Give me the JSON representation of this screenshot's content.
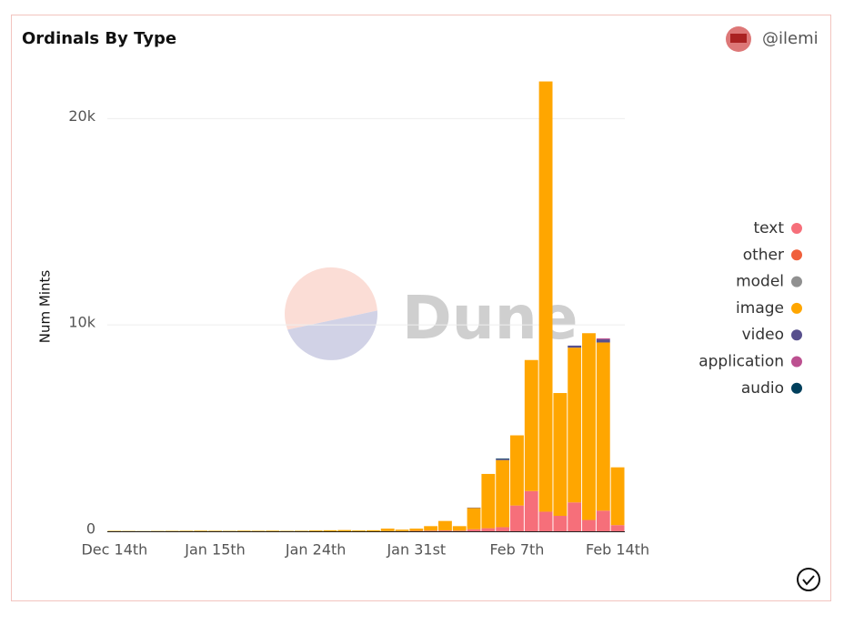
{
  "chart_data": {
    "type": "stacked_bar",
    "title": "Ordinals By Type",
    "user": "@ilemi",
    "watermark": "Dune",
    "ylabel": "Num Mints",
    "categories": [
      "Dec 14th",
      null,
      null,
      null,
      null,
      null,
      null,
      "Jan 15th",
      null,
      null,
      null,
      null,
      null,
      null,
      "Jan 24th",
      null,
      null,
      null,
      null,
      null,
      null,
      "Jan 31st",
      null,
      null,
      null,
      null,
      null,
      null,
      "Feb 7th",
      null,
      null,
      null,
      null,
      null,
      null,
      "Feb 14th"
    ],
    "series": [
      {
        "name": "text",
        "color": "#f66f7a",
        "values": [
          0,
          0,
          0,
          0,
          0,
          0,
          0,
          0,
          0,
          0,
          0,
          0,
          0,
          0,
          0,
          0,
          0,
          0,
          0,
          10,
          10,
          20,
          30,
          40,
          30,
          100,
          150,
          200,
          1250,
          1950,
          950,
          750,
          1400,
          550,
          1000,
          300
        ]
      },
      {
        "name": "other",
        "color": "#f0603c",
        "values": [
          0,
          0,
          0,
          0,
          0,
          0,
          0,
          0,
          0,
          0,
          0,
          0,
          0,
          0,
          0,
          0,
          0,
          0,
          0,
          0,
          0,
          0,
          0,
          0,
          0,
          0,
          0,
          0,
          0,
          0,
          0,
          0,
          0,
          0,
          0,
          0
        ]
      },
      {
        "name": "model",
        "color": "#909090",
        "values": [
          0,
          0,
          0,
          0,
          0,
          0,
          0,
          0,
          0,
          0,
          0,
          0,
          0,
          0,
          0,
          0,
          0,
          0,
          0,
          0,
          0,
          0,
          0,
          0,
          0,
          0,
          0,
          0,
          0,
          0,
          0,
          0,
          0,
          0,
          0,
          0
        ]
      },
      {
        "name": "image",
        "color": "#ffa600",
        "values": [
          20,
          15,
          10,
          15,
          20,
          25,
          30,
          25,
          20,
          30,
          25,
          30,
          20,
          25,
          40,
          50,
          60,
          40,
          50,
          120,
          70,
          110,
          220,
          460,
          220,
          1030,
          2630,
          3250,
          3400,
          6350,
          20850,
          5950,
          7500,
          9050,
          8150,
          2800
        ]
      },
      {
        "name": "video",
        "color": "#58508d",
        "values": [
          0,
          0,
          0,
          0,
          0,
          0,
          0,
          0,
          0,
          0,
          0,
          0,
          0,
          0,
          0,
          0,
          0,
          0,
          0,
          0,
          0,
          0,
          0,
          0,
          0,
          20,
          0,
          50,
          0,
          0,
          0,
          0,
          100,
          0,
          150,
          0
        ]
      },
      {
        "name": "application",
        "color": "#bc5090",
        "values": [
          0,
          0,
          0,
          0,
          0,
          0,
          0,
          0,
          0,
          0,
          0,
          0,
          0,
          0,
          0,
          0,
          0,
          0,
          0,
          0,
          0,
          0,
          0,
          0,
          0,
          0,
          0,
          0,
          0,
          0,
          0,
          0,
          0,
          0,
          50,
          0
        ]
      },
      {
        "name": "audio",
        "color": "#003f5c",
        "values": [
          0,
          0,
          0,
          0,
          0,
          0,
          0,
          0,
          0,
          0,
          0,
          0,
          0,
          0,
          0,
          0,
          0,
          0,
          0,
          0,
          0,
          0,
          0,
          0,
          0,
          0,
          0,
          30,
          0,
          0,
          0,
          0,
          0,
          0,
          0,
          0
        ]
      }
    ],
    "ylim": [
      0,
      22000
    ],
    "yticks": [
      0,
      {
        "value": 10000,
        "label": "10k"
      },
      {
        "value": 20000,
        "label": "20k"
      }
    ],
    "grid": true
  }
}
